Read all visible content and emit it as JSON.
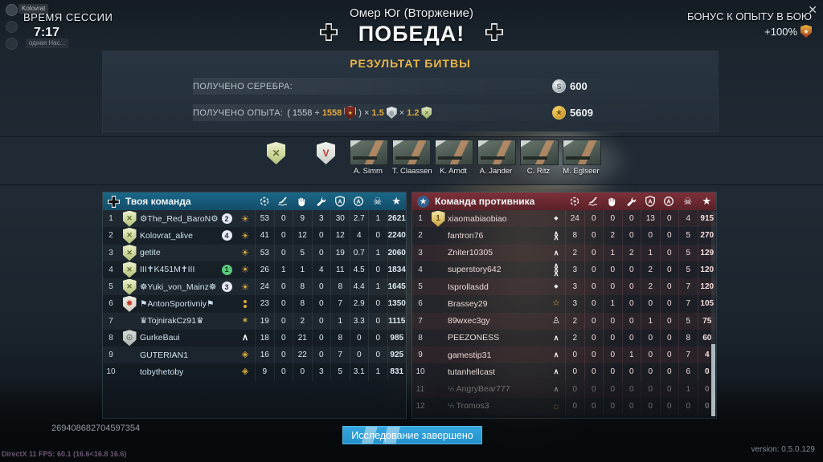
{
  "session": {
    "overlay_chip_top": "Kolovrat",
    "overlay_chip_bottom": "одная Нас...",
    "label": "ВРЕМЯ СЕССИИ",
    "time": "7:17"
  },
  "header": {
    "map_title": "Омер Юг (Вторжение)",
    "result_title": "ПОБЕДА!",
    "bonus_label": "БОНУС К ОПЫТУ В БОЮ",
    "bonus_value": "+100%"
  },
  "results": {
    "title": "РЕЗУЛЬТАТ БИТВЫ",
    "silver_label": "ПОЛУЧЕНО СЕРЕБРА:",
    "silver_value": "600",
    "xp_label": "ПОЛУЧЕНО ОПЫТА:",
    "xp_formula": {
      "open": "(",
      "base": "1558",
      "plus": "+",
      "premium_bonus": "1558",
      "close": ")",
      "mult1_sign": "×",
      "mult1": "1.5",
      "mult2_sign": "×",
      "mult2": "1.2"
    },
    "xp_value": "5609"
  },
  "crew": {
    "names": [
      "A. Simm",
      "T. Claassen",
      "K. Arndt",
      "A. Jander",
      "C. Ritz",
      "M. Eglseer"
    ]
  },
  "scoreboard": {
    "columns": [
      "crosshair-kills",
      "aircraft-kills",
      "hand-assists",
      "wrench-repairs",
      "shield-captures",
      "circle-activity",
      "skull-deaths",
      "star-score"
    ],
    "your_team": {
      "title": "Твоя команда",
      "rows": [
        {
          "n": "1",
          "emblem": "green-x",
          "name": "⚙The_Red_BaroN⚙",
          "squad": "2",
          "squad_color": "white",
          "rank": "sun",
          "stats": [
            "53",
            "0",
            "9",
            "3",
            "30",
            "2.7",
            "1",
            "2621"
          ]
        },
        {
          "n": "2",
          "emblem": "green-x",
          "name": "Kolovrat_alive",
          "squad": "4",
          "squad_color": "white",
          "rank": "sun",
          "stats": [
            "41",
            "0",
            "12",
            "0",
            "12",
            "4",
            "0",
            "2240"
          ]
        },
        {
          "n": "3",
          "emblem": "green-x",
          "name": "getite",
          "squad": "",
          "squad_color": "",
          "rank": "sun",
          "stats": [
            "53",
            "0",
            "5",
            "0",
            "19",
            "0.7",
            "1",
            "2060"
          ]
        },
        {
          "n": "4",
          "emblem": "green-x",
          "name": "III✝K451M✝III",
          "squad": "1",
          "squad_color": "green",
          "rank": "sun",
          "stats": [
            "26",
            "1",
            "1",
            "4",
            "11",
            "4.5",
            "0",
            "1834"
          ]
        },
        {
          "n": "5",
          "emblem": "green-x",
          "name": "☸Yuki_von_Mainz☸",
          "squad": "3",
          "squad_color": "white",
          "rank": "sun",
          "stats": [
            "24",
            "0",
            "8",
            "0",
            "8",
            "4.4",
            "1",
            "1645"
          ]
        },
        {
          "n": "6",
          "emblem": "flame",
          "name": "⚑AntonSportivniy⚑",
          "squad": "",
          "squad_color": "",
          "rank": "dots2",
          "stats": [
            "23",
            "0",
            "8",
            "0",
            "7",
            "2.9",
            "0",
            "1350"
          ]
        },
        {
          "n": "7",
          "emblem": "",
          "name": "♛TojnirakCz91♛",
          "squad": "",
          "squad_color": "",
          "rank": "star6",
          "stats": [
            "19",
            "0",
            "2",
            "0",
            "1",
            "3.3",
            "0",
            "1115"
          ]
        },
        {
          "n": "8",
          "emblem": "gray",
          "name": "GurkeBaui",
          "squad": "",
          "squad_color": "",
          "rank": "chevw",
          "stats": [
            "18",
            "0",
            "21",
            "0",
            "8",
            "0",
            "0",
            "985"
          ]
        },
        {
          "n": "9",
          "emblem": "",
          "name": "GUTERIAN1",
          "squad": "",
          "squad_color": "",
          "rank": "gdia",
          "stats": [
            "16",
            "0",
            "22",
            "0",
            "7",
            "0",
            "0",
            "925"
          ]
        },
        {
          "n": "10",
          "emblem": "",
          "name": "tobythetoby",
          "squad": "",
          "squad_color": "",
          "rank": "gdia",
          "stats": [
            "9",
            "0",
            "0",
            "3",
            "5",
            "3.1",
            "1",
            "831"
          ]
        }
      ]
    },
    "enemy_team": {
      "title": "Команда противника",
      "rows": [
        {
          "n": "1",
          "emblem": "gold1",
          "name": "xiaomabiaobiao",
          "rank": "dot",
          "faded": false,
          "leave": false,
          "stats": [
            "24",
            "0",
            "0",
            "0",
            "13",
            "0",
            "4",
            "915"
          ]
        },
        {
          "n": "2",
          "emblem": "",
          "name": "fantron76",
          "rank": "chev2",
          "faded": false,
          "leave": false,
          "stats": [
            "8",
            "0",
            "2",
            "0",
            "0",
            "0",
            "5",
            "270"
          ]
        },
        {
          "n": "3",
          "emblem": "",
          "name": "Zniter10305",
          "rank": "chev1",
          "faded": false,
          "leave": false,
          "stats": [
            "2",
            "0",
            "1",
            "2",
            "1",
            "0",
            "5",
            "129"
          ]
        },
        {
          "n": "4",
          "emblem": "",
          "name": "superstory642",
          "rank": "chev3",
          "faded": false,
          "leave": false,
          "stats": [
            "3",
            "0",
            "0",
            "0",
            "2",
            "0",
            "5",
            "120"
          ]
        },
        {
          "n": "5",
          "emblem": "",
          "name": "Isprollasdd",
          "rank": "dot",
          "faded": false,
          "leave": false,
          "stats": [
            "3",
            "0",
            "0",
            "0",
            "2",
            "0",
            "7",
            "120"
          ]
        },
        {
          "n": "6",
          "emblem": "",
          "name": "Brassey29",
          "rank": "starout",
          "faded": false,
          "leave": false,
          "stats": [
            "3",
            "0",
            "1",
            "0",
            "0",
            "0",
            "7",
            "105"
          ]
        },
        {
          "n": "7",
          "emblem": "",
          "name": "89wxec3gy",
          "rank": "pawn",
          "faded": false,
          "leave": false,
          "stats": [
            "2",
            "0",
            "0",
            "0",
            "1",
            "0",
            "5",
            "75"
          ]
        },
        {
          "n": "8",
          "emblem": "",
          "name": "PEEZONESS",
          "rank": "chev1",
          "faded": false,
          "leave": false,
          "stats": [
            "2",
            "0",
            "0",
            "0",
            "0",
            "0",
            "8",
            "60"
          ]
        },
        {
          "n": "9",
          "emblem": "",
          "name": "gamestip31",
          "rank": "chev1",
          "faded": false,
          "leave": false,
          "stats": [
            "0",
            "0",
            "0",
            "1",
            "0",
            "0",
            "7",
            "4"
          ]
        },
        {
          "n": "10",
          "emblem": "",
          "name": "tutanhellcast",
          "rank": "chev1",
          "faded": false,
          "leave": false,
          "stats": [
            "0",
            "0",
            "0",
            "0",
            "0",
            "0",
            "6",
            "0"
          ]
        },
        {
          "n": "11",
          "emblem": "",
          "name": "AngryBear777",
          "rank": "chev1",
          "faded": true,
          "leave": true,
          "stats": [
            "0",
            "0",
            "0",
            "0",
            "0",
            "0",
            "1",
            "0"
          ]
        },
        {
          "n": "12",
          "emblem": "",
          "name": "Tromos3",
          "rank": "sunburst",
          "faded": true,
          "leave": true,
          "stats": [
            "0",
            "0",
            "0",
            "0",
            "0",
            "0",
            "0",
            "0"
          ]
        }
      ]
    }
  },
  "footer": {
    "left_number": "269408682704597354",
    "research_button": "Исследование завершено",
    "fps_text": "DirectX 11 FPS: 60.1 (16.6<16.8 16.6)",
    "version_text": "version: 0.5.0.129"
  }
}
